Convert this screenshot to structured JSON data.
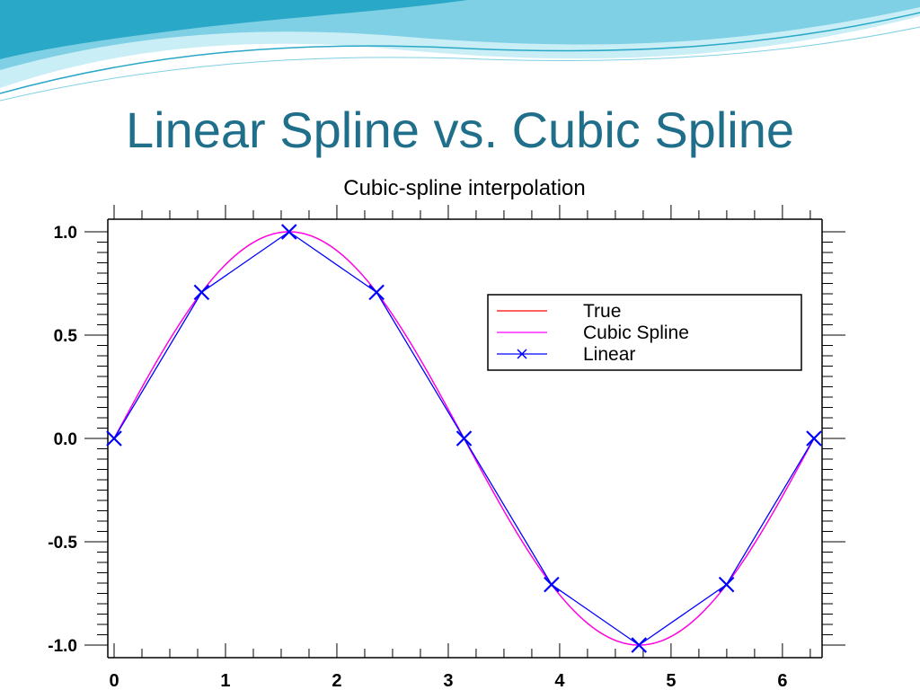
{
  "slide": {
    "title": "Linear Spline vs. Cubic Spline"
  },
  "theme": {
    "title_color": "#1f6f8b",
    "banner_colors": [
      "#2aa8c8",
      "#7fd0e4",
      "#c9eef6"
    ]
  },
  "chart_data": {
    "type": "line",
    "title": "Cubic-spline interpolation",
    "xlabel": "",
    "ylabel": "",
    "xlim": [
      0,
      6.2832
    ],
    "ylim": [
      -1.0,
      1.0
    ],
    "x_ticks": [
      0,
      1,
      2,
      3,
      4,
      5,
      6
    ],
    "x_tick_labels": [
      "0",
      "1",
      "2",
      "3",
      "4",
      "5",
      "6"
    ],
    "y_ticks": [
      1.0,
      0.5,
      0.0,
      -0.5,
      -1.0
    ],
    "y_tick_labels": [
      "1.0",
      "0.5",
      "0.0",
      "-0.5",
      "-1.0"
    ],
    "grid": false,
    "legend_position": "top-right",
    "knots": {
      "x": [
        0,
        0.7854,
        1.5708,
        2.3562,
        3.1416,
        3.927,
        4.7124,
        5.4978,
        6.2832
      ],
      "y": [
        0,
        0.7071,
        1.0,
        0.7071,
        0,
        -0.7071,
        -1.0,
        -0.7071,
        0
      ]
    },
    "series": [
      {
        "name": "True",
        "color": "#ff0000",
        "style": "line",
        "function": "sin(x)"
      },
      {
        "name": "Cubic Spline",
        "color": "#ff00ff",
        "style": "line",
        "interpolation": "natural-cubic-spline"
      },
      {
        "name": "Linear",
        "color": "#0000ff",
        "style": "line-x-markers",
        "interpolation": "linear"
      }
    ]
  }
}
